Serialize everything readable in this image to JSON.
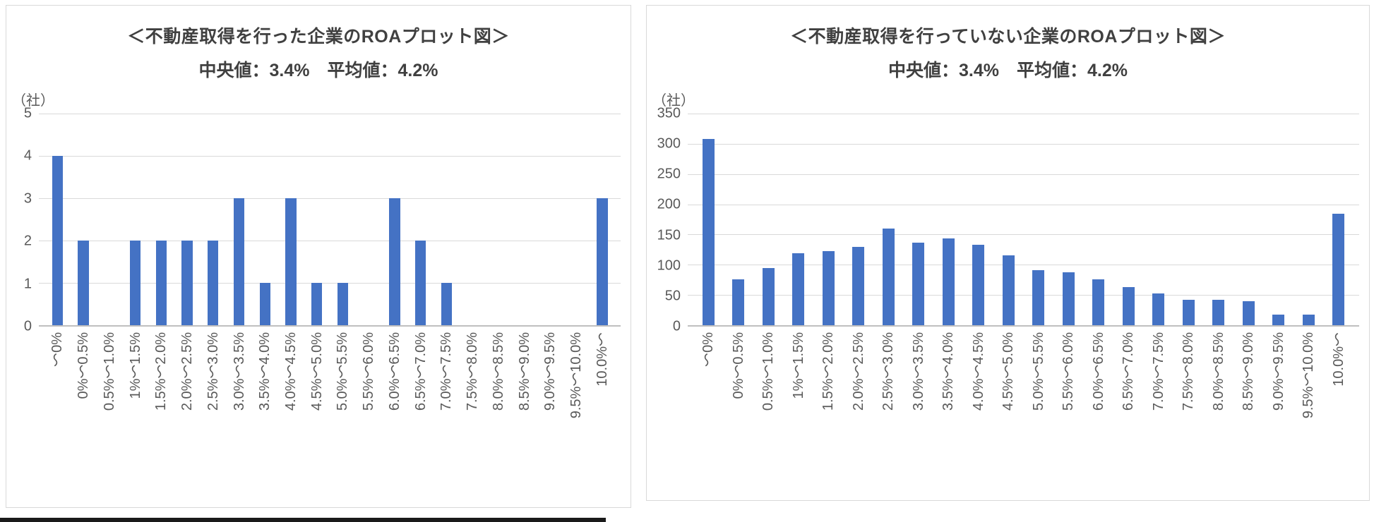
{
  "colors": {
    "bar": "#4472C4",
    "gridline": "#d9d9d9",
    "axis": "#bfbfbf",
    "title_text": "#404040",
    "tick_text": "#595959"
  },
  "chart_data": [
    {
      "type": "bar",
      "title": "＜不動産取得を行った企業のROAプロット図＞",
      "subtitle": "中央値：3.4%　平均値：4.2%",
      "unit_label": "（社）",
      "xlabel": "",
      "ylabel": "（社）",
      "ylim": [
        0,
        5
      ],
      "ytick_step": 1,
      "grid": true,
      "legend": "none",
      "categories": [
        "～0%",
        "0%～0.5%",
        "0.5%～1.0%",
        "1%～1.5%",
        "1.5%～2.0%",
        "2.0%～2.5%",
        "2.5%～3.0%",
        "3.0%～3.5%",
        "3.5%～4.0%",
        "4.0%～4.5%",
        "4.5%～5.0%",
        "5.0%～5.5%",
        "5.5%～6.0%",
        "6.0%～6.5%",
        "6.5%～7.0%",
        "7.0%～7.5%",
        "7.5%～8.0%",
        "8.0%～8.5%",
        "8.5%～9.0%",
        "9.0%～9.5%",
        "9.5%～10.0%",
        "10.0%～"
      ],
      "values": [
        4,
        2,
        0,
        2,
        2,
        2,
        2,
        3,
        1,
        3,
        1,
        1,
        0,
        3,
        2,
        1,
        0,
        0,
        0,
        0,
        0,
        3
      ]
    },
    {
      "type": "bar",
      "title": "＜不動産取得を行っていない企業のROAプロット図＞",
      "subtitle": "中央値：3.4%　平均値：4.2%",
      "unit_label": "（社）",
      "xlabel": "",
      "ylabel": "（社）",
      "ylim": [
        0,
        350
      ],
      "ytick_step": 50,
      "grid": true,
      "legend": "none",
      "categories": [
        "～0%",
        "0%～0.5%",
        "0.5%～1.0%",
        "1%～1.5%",
        "1.5%～2.0%",
        "2.0%～2.5%",
        "2.5%～3.0%",
        "3.0%～3.5%",
        "3.5%～4.0%",
        "4.0%～4.5%",
        "4.5%～5.0%",
        "5.0%～5.5%",
        "5.5%～6.0%",
        "6.0%～6.5%",
        "6.5%～7.0%",
        "7.0%～7.5%",
        "7.5%～8.0%",
        "8.0%～8.5%",
        "8.5%～9.0%",
        "9.0%～9.5%",
        "9.5%～10.0%",
        "10.0%～"
      ],
      "values": [
        308,
        76,
        95,
        119,
        122,
        129,
        160,
        137,
        144,
        133,
        115,
        91,
        87,
        76,
        63,
        53,
        42,
        42,
        40,
        17,
        17,
        184
      ]
    }
  ]
}
